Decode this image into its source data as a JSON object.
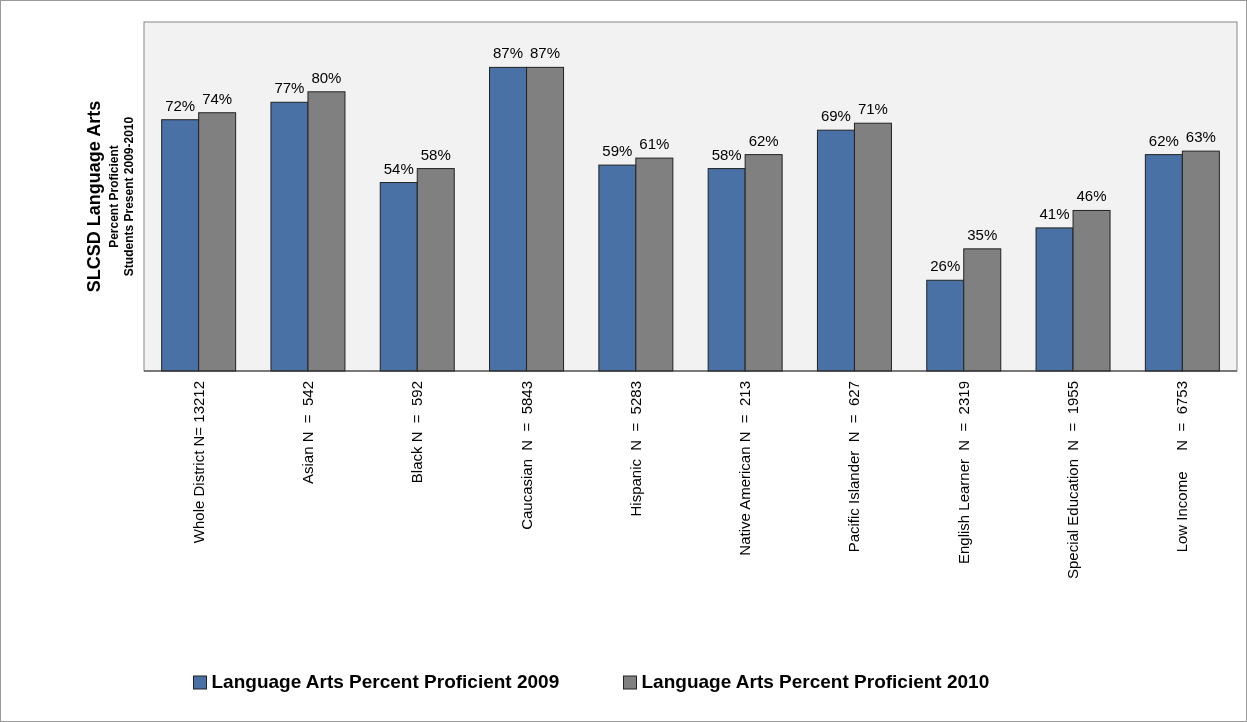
{
  "chart_data": {
    "type": "bar",
    "ylabel": "SLCSD Language Arts",
    "annotations": [
      "Percent Proficient",
      "Students Present 2009-2010"
    ],
    "categories": [
      "Whole District N= 13212",
      "Asian N  =  542",
      "Black N  =  592",
      "Caucasian  N  =  5843",
      "Hispanic  N  =  5283",
      "Native American N  =  213",
      "Pacific Islander  N  =  627",
      "English Learner  N  =  2319",
      "Special Education  N  =  1955",
      "Low Income     N  =  6753"
    ],
    "ylim": [
      0,
      100
    ],
    "series": [
      {
        "name": "Language Arts Percent Proficient 2009",
        "color": "#4a71a5",
        "values": [
          72,
          77,
          54,
          87,
          59,
          58,
          69,
          26,
          41,
          62
        ],
        "value_labels": [
          "72%",
          "77%",
          "54%",
          "87%",
          "59%",
          "58%",
          "69%",
          "26%",
          "41%",
          "62%"
        ]
      },
      {
        "name": "Language Arts Percent Proficient 2010",
        "color": "#808080",
        "values": [
          74,
          80,
          58,
          87,
          61,
          62,
          71,
          35,
          46,
          63
        ],
        "value_labels": [
          "74%",
          "80%",
          "58%",
          "87%",
          "61%",
          "62%",
          "71%",
          "35%",
          "46%",
          "63%"
        ]
      }
    ],
    "legend": "bottom"
  }
}
